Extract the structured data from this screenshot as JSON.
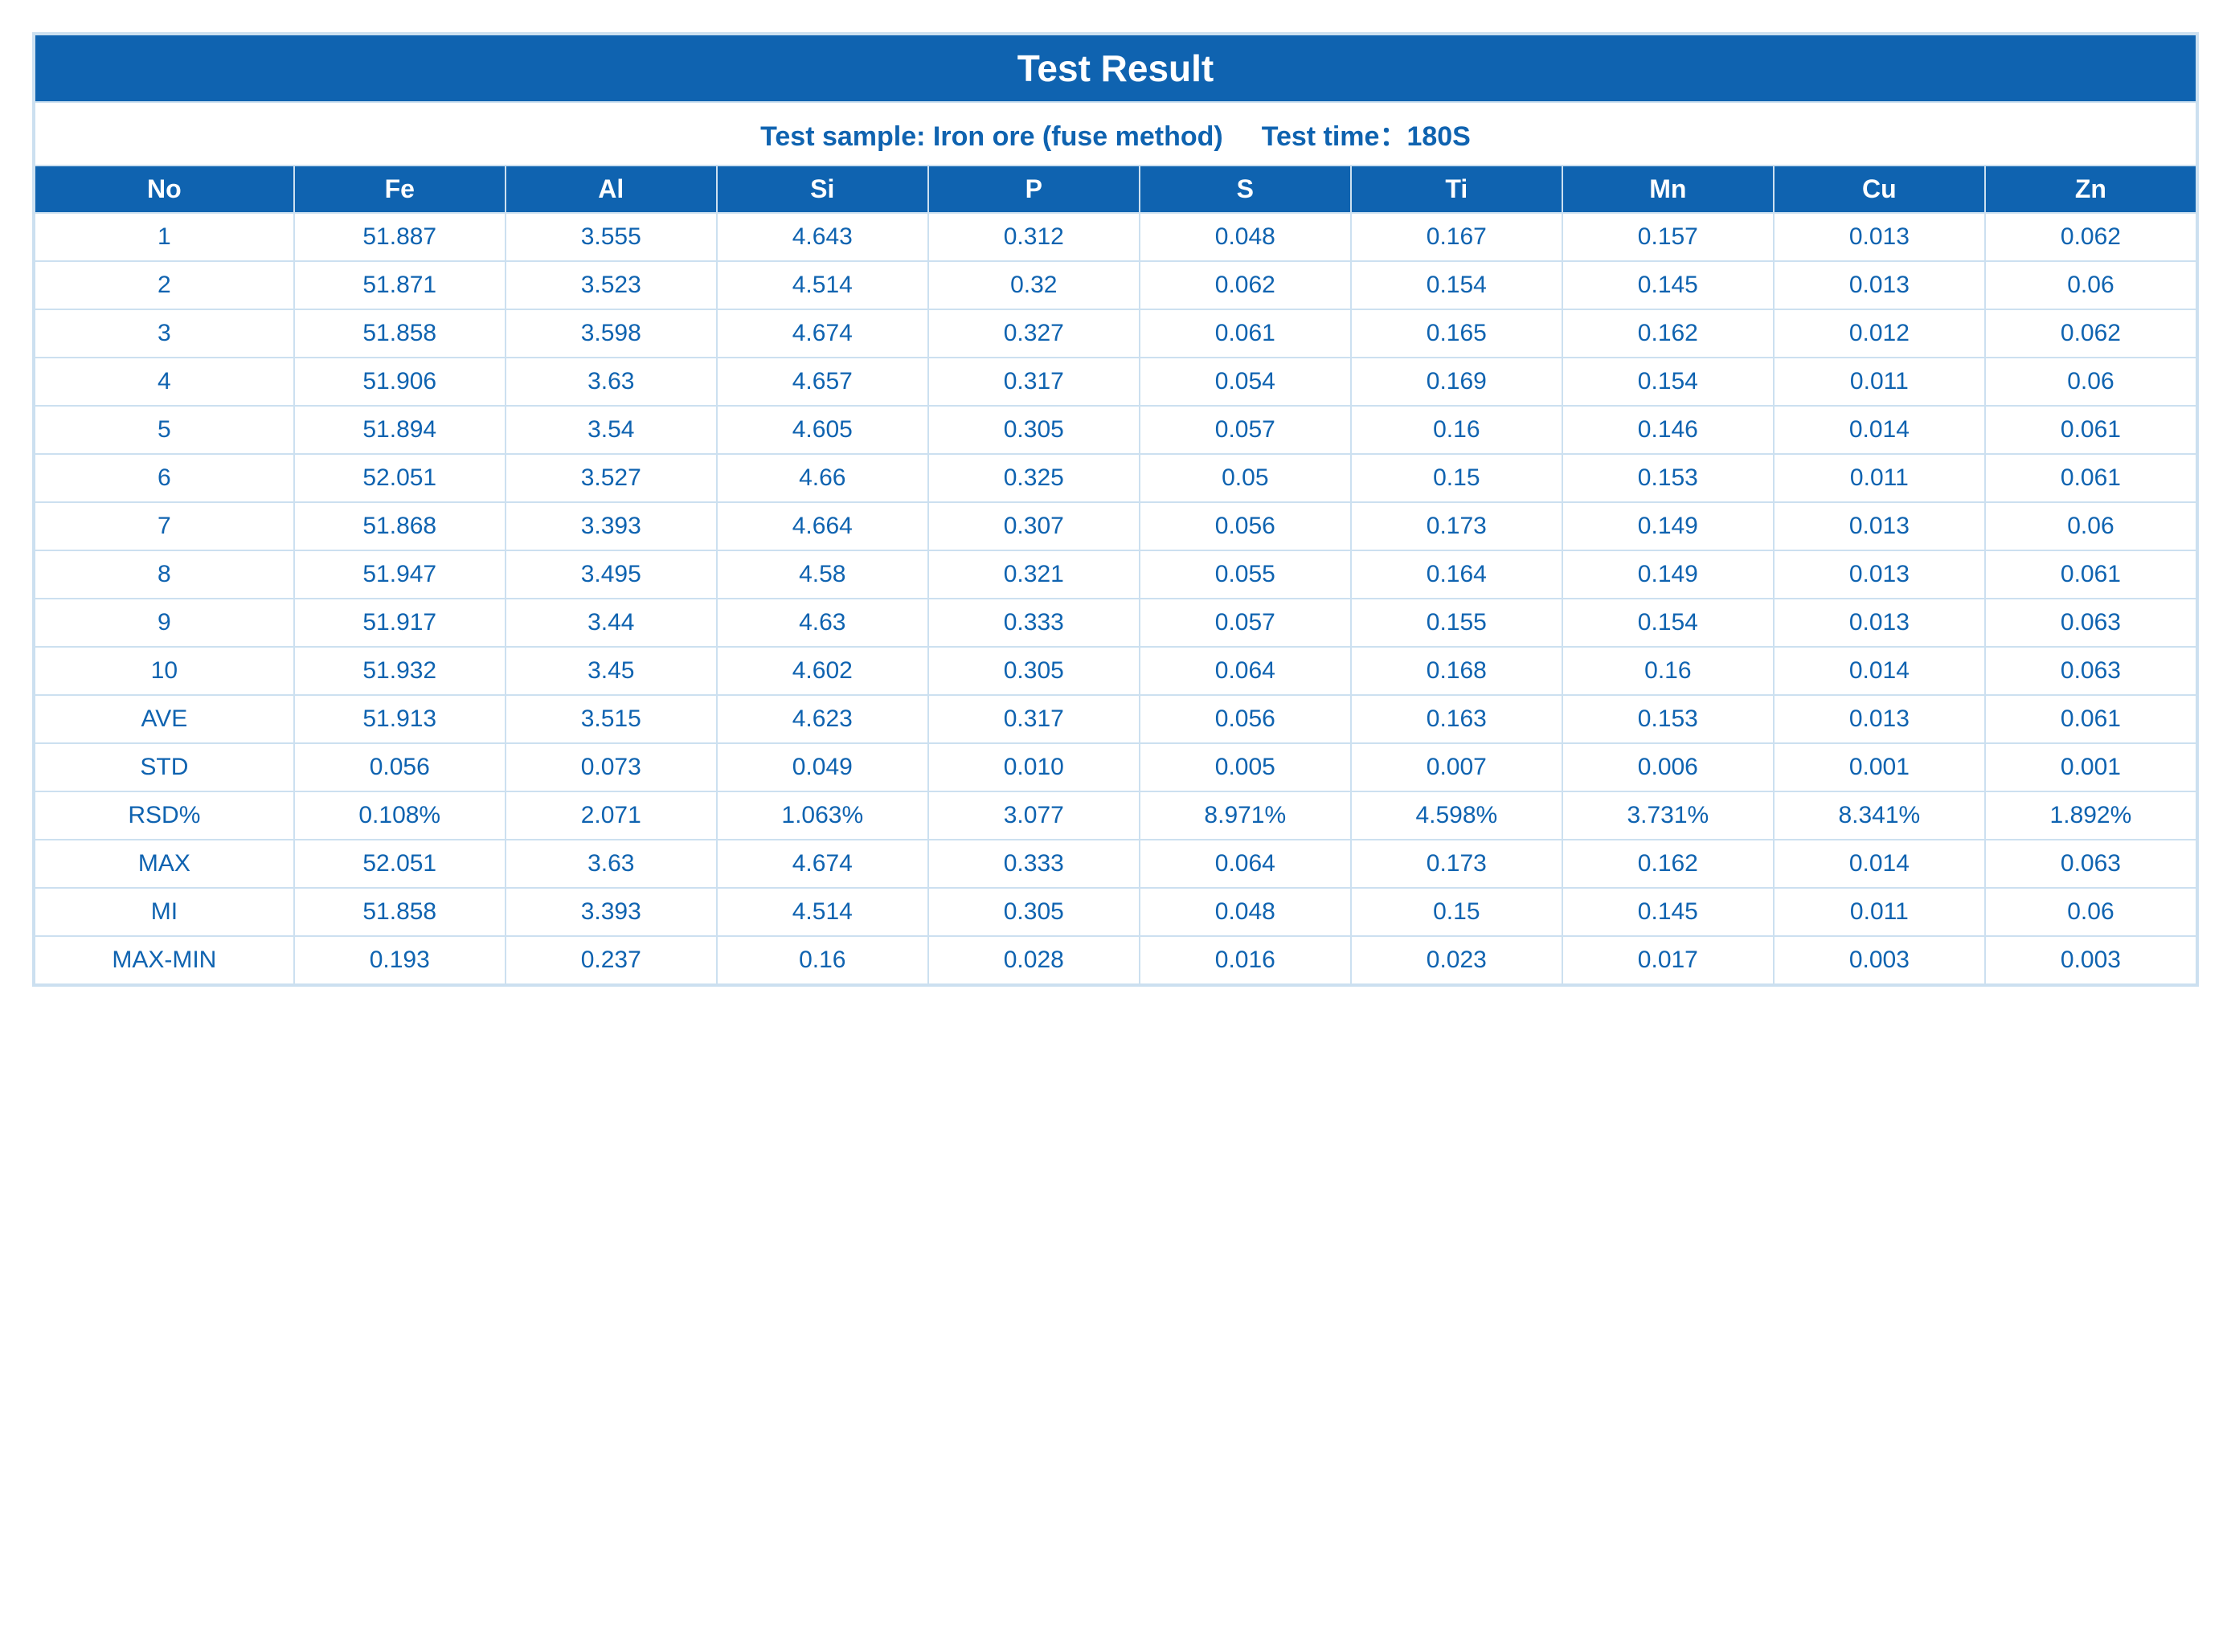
{
  "table": {
    "type": "table",
    "title": "Test Result",
    "subtitle_sample_label": "Test sample: Iron ore (fuse method)",
    "subtitle_time_label": "Test time：180S",
    "columns": [
      "No",
      "Fe",
      "Al",
      "Si",
      "P",
      "S",
      "Ti",
      "Mn",
      "Cu",
      "Zn"
    ],
    "rows": [
      [
        "1",
        "51.887",
        "3.555",
        "4.643",
        "0.312",
        "0.048",
        "0.167",
        "0.157",
        "0.013",
        "0.062"
      ],
      [
        "2",
        "51.871",
        "3.523",
        "4.514",
        "0.32",
        "0.062",
        "0.154",
        "0.145",
        "0.013",
        "0.06"
      ],
      [
        "3",
        "51.858",
        "3.598",
        "4.674",
        "0.327",
        "0.061",
        "0.165",
        "0.162",
        "0.012",
        "0.062"
      ],
      [
        "4",
        "51.906",
        "3.63",
        "4.657",
        "0.317",
        "0.054",
        "0.169",
        "0.154",
        "0.011",
        "0.06"
      ],
      [
        "5",
        "51.894",
        "3.54",
        "4.605",
        "0.305",
        "0.057",
        "0.16",
        "0.146",
        "0.014",
        "0.061"
      ],
      [
        "6",
        "52.051",
        "3.527",
        "4.66",
        "0.325",
        "0.05",
        "0.15",
        "0.153",
        "0.011",
        "0.061"
      ],
      [
        "7",
        "51.868",
        "3.393",
        "4.664",
        "0.307",
        "0.056",
        "0.173",
        "0.149",
        "0.013",
        "0.06"
      ],
      [
        "8",
        "51.947",
        "3.495",
        "4.58",
        "0.321",
        "0.055",
        "0.164",
        "0.149",
        "0.013",
        "0.061"
      ],
      [
        "9",
        "51.917",
        "3.44",
        "4.63",
        "0.333",
        "0.057",
        "0.155",
        "0.154",
        "0.013",
        "0.063"
      ],
      [
        "10",
        "51.932",
        "3.45",
        "4.602",
        "0.305",
        "0.064",
        "0.168",
        "0.16",
        "0.014",
        "0.063"
      ],
      [
        "AVE",
        "51.913",
        "3.515",
        "4.623",
        "0.317",
        "0.056",
        "0.163",
        "0.153",
        "0.013",
        "0.061"
      ],
      [
        "STD",
        "0.056",
        "0.073",
        "0.049",
        "0.010",
        "0.005",
        "0.007",
        "0.006",
        "0.001",
        "0.001"
      ],
      [
        "RSD%",
        "0.108%",
        "2.071",
        "1.063%",
        "3.077",
        "8.971%",
        "4.598%",
        "3.731%",
        "8.341%",
        "1.892%"
      ],
      [
        "MAX",
        "52.051",
        "3.63",
        "4.674",
        "0.333",
        "0.064",
        "0.173",
        "0.162",
        "0.014",
        "0.063"
      ],
      [
        "MI",
        "51.858",
        "3.393",
        "4.514",
        "0.305",
        "0.048",
        "0.15",
        "0.145",
        "0.011",
        "0.06"
      ],
      [
        "MAX-MIN",
        "0.193",
        "0.237",
        "0.16",
        "0.028",
        "0.016",
        "0.023",
        "0.017",
        "0.003",
        "0.003"
      ]
    ],
    "colors": {
      "header_bg": "#0f63b0",
      "header_text": "#ffffff",
      "cell_text": "#0f63b0",
      "cell_bg": "#ffffff",
      "border": "#cce0f0"
    },
    "typography": {
      "title_fontsize_pt": 46,
      "subtitle_fontsize_pt": 34,
      "header_fontsize_pt": 32,
      "cell_fontsize_pt": 30,
      "font_family": "Helvetica Neue"
    },
    "layout": {
      "num_columns": 10,
      "num_rows": 16,
      "column_align": "center",
      "first_col_width_pct": 12,
      "other_col_width_pct": 9.78
    }
  }
}
